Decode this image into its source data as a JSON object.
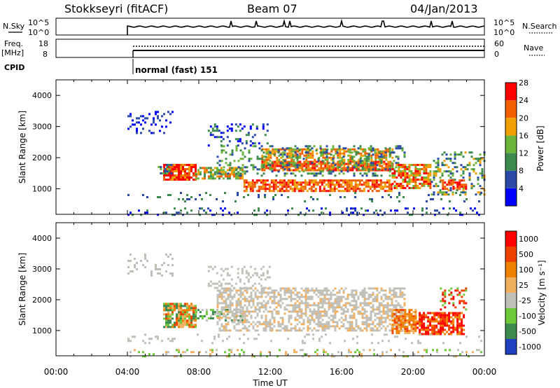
{
  "header": {
    "station": "Stokkseyri (fitACF)",
    "beam": "Beam 07",
    "date": "04/Jan/2013"
  },
  "panels": {
    "nsky": {
      "label_left": "N.Sky",
      "label_right": "N.Search",
      "ticks_left": [
        "10^5",
        "10^0"
      ],
      "ticks_right": [
        "10^5",
        "10^0"
      ]
    },
    "freq": {
      "label_left_top": "Freq.",
      "label_left_bottom": "[MHz]",
      "label_right": "Nave",
      "ticks_left": [
        "18",
        "8"
      ],
      "ticks_right": [
        "60",
        "0"
      ]
    },
    "cpid": {
      "label": "CPID",
      "program": "normal (fast) 151"
    }
  },
  "chart_data": [
    {
      "type": "line",
      "name": "nsky-panel",
      "x_range_hours": [
        0,
        24
      ],
      "data_start_hour": 4,
      "series_left_level": "10^0 to 10^5 log",
      "spikes_hours": [
        9.8,
        11.2,
        12.8,
        13.1,
        16.0,
        18.3,
        21.0,
        22.2
      ]
    },
    {
      "type": "line",
      "name": "freq-panel",
      "x_range_hours": [
        0,
        24
      ],
      "data_start_hour": 4,
      "freq_mhz_approx": 10.5,
      "nave_approx": 45
    },
    {
      "type": "heatmap",
      "name": "power",
      "xlabel": "",
      "ylabel": "Slant Range [km]",
      "xlim_hours": [
        0,
        24
      ],
      "ylim_km": [
        180,
        4500
      ],
      "yticks": [
        1000,
        2000,
        3000,
        4000
      ],
      "colorbar_label": "Power [dB]",
      "colorbar_ticks": [
        "4",
        "8",
        "12",
        "16",
        "20",
        "24",
        "28"
      ],
      "colors": [
        "#0000ff",
        "#2b4aa8",
        "#3c8a4e",
        "#6db43a",
        "#f0a000",
        "#f06000",
        "#ff0000"
      ]
    },
    {
      "type": "heatmap",
      "name": "velocity",
      "xlabel": "Time UT",
      "ylabel": "Slant Range [km]",
      "xlim_hours": [
        0,
        24
      ],
      "ylim_km": [
        180,
        4500
      ],
      "yticks": [
        1000,
        2000,
        3000,
        4000
      ],
      "xticks": [
        "00:00",
        "04:00",
        "08:00",
        "12:00",
        "16:00",
        "20:00",
        "00:00"
      ],
      "colorbar_label": "Velocity [m s⁻¹]",
      "colorbar_ticks": [
        "1000",
        "500",
        "100",
        "25",
        "-25",
        "-100",
        "-500",
        "-1000"
      ],
      "colors": [
        "#1f3fbf",
        "#3c8a4e",
        "#6dc93a",
        "#c0c0b8",
        "#f0b060",
        "#f08000",
        "#f04000",
        "#ff0000"
      ]
    }
  ]
}
